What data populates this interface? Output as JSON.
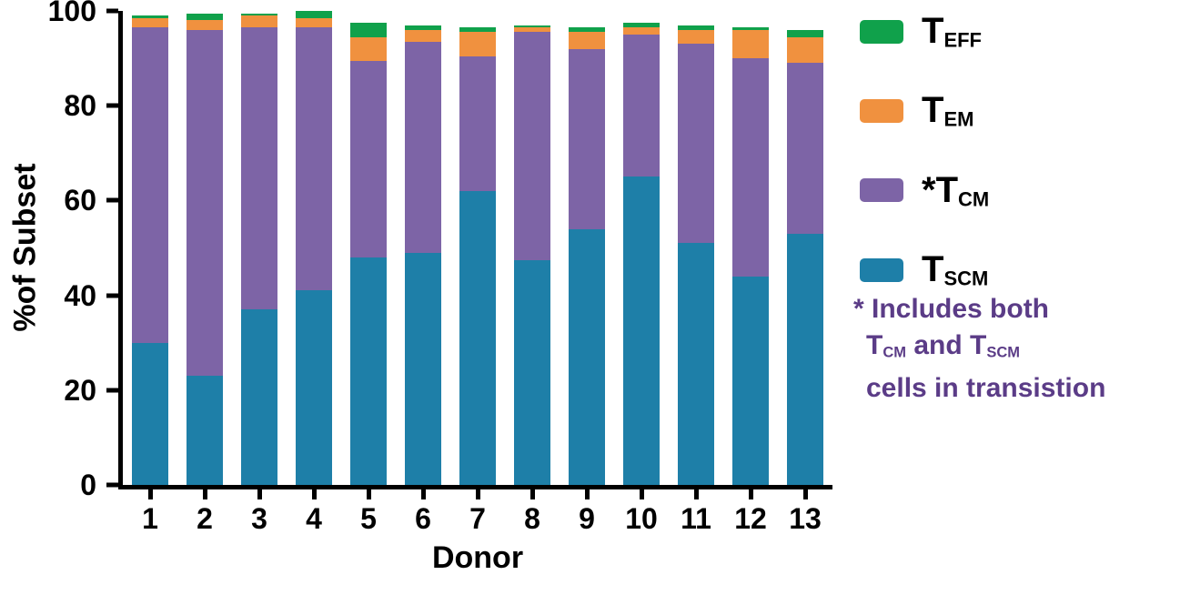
{
  "chart_data": {
    "type": "bar",
    "stacked": true,
    "title": "",
    "xlabel": "Donor",
    "ylabel": "%of Subset",
    "ylim": [
      0,
      100
    ],
    "yticks": [
      0,
      20,
      40,
      60,
      80,
      100
    ],
    "grid": false,
    "legend_position": "right",
    "categories": [
      "1",
      "2",
      "3",
      "4",
      "5",
      "6",
      "7",
      "8",
      "9",
      "10",
      "11",
      "12",
      "13"
    ],
    "series": [
      {
        "key": "tscm",
        "name": "T_SCM",
        "color": "#1e7fa8",
        "values": [
          30,
          23,
          37,
          41,
          48,
          49,
          62,
          47.5,
          54,
          65,
          51,
          44,
          53
        ]
      },
      {
        "key": "tcm",
        "name": "*T_CM",
        "color": "#7d64a6",
        "values": [
          66.5,
          73,
          59.5,
          55.5,
          41.5,
          44.5,
          28.5,
          48,
          38,
          30,
          42,
          46,
          36
        ]
      },
      {
        "key": "tem",
        "name": "T_EM",
        "color": "#f0913f",
        "values": [
          2,
          2,
          2.5,
          2,
          5,
          2.5,
          5,
          1,
          3.5,
          1.5,
          3,
          6,
          5.5
        ]
      },
      {
        "key": "teff",
        "name": "T_EFF",
        "color": "#10a14b",
        "values": [
          0.5,
          1.5,
          0.5,
          1.5,
          3,
          1,
          1,
          0.5,
          1,
          1,
          1,
          0.5,
          1.5
        ]
      }
    ]
  },
  "axes": {
    "x_title": "Donor",
    "y_title": "%of Subset"
  },
  "legend": {
    "items": [
      {
        "prefix": "",
        "main": "T",
        "sub": "EFF",
        "color": "#10a14b"
      },
      {
        "prefix": "",
        "main": "T",
        "sub": "EM",
        "color": "#f0913f"
      },
      {
        "prefix": "*",
        "main": "T",
        "sub": "CM",
        "color": "#7d64a6"
      },
      {
        "prefix": "",
        "main": "T",
        "sub": "SCM",
        "color": "#1e7fa8"
      }
    ]
  },
  "note": {
    "color": "#5b3c87",
    "line1": "* Includes both",
    "line2_t1": "T",
    "line2_s1": "CM",
    "line2_t2": " and T",
    "line2_s2": "SCM",
    "line3": "cells in transistion"
  }
}
